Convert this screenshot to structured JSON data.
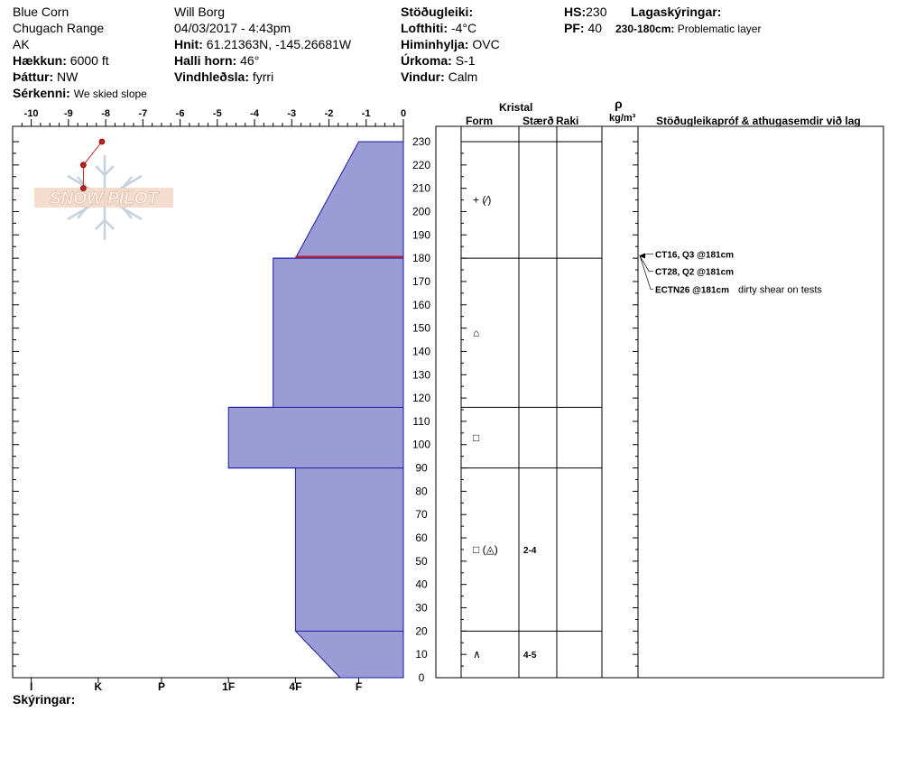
{
  "header": {
    "location": "Blue Corn",
    "range": "Chugach Range",
    "state": "AK",
    "elevation_label": "Hækkun:",
    "elevation_value": "6000 ft",
    "aspect_label": "Þáttur:",
    "aspect_value": "NW",
    "features_label": "Sérkenni:",
    "features_value": "We skied slope",
    "observer": "Will Borg",
    "datetime": "04/03/2017 - 4:43pm",
    "coords_label": "Hnit:",
    "coords_value": "61.21363N, -145.26681W",
    "slope_label": "Halli horn:",
    "slope_value": "46°",
    "wind_loading_label": "Vindhleðsla:",
    "wind_loading_value": "fyrri",
    "stability_label": "Stöðugleiki:",
    "air_temp_label": "Lofthiti:",
    "air_temp_value": "-4°C",
    "sky_label": "Himinhylja:",
    "sky_value": "OVC",
    "precip_label": "Úrkoma:",
    "precip_value": "S-1",
    "wind_label": "Vindur:",
    "wind_value": "Calm",
    "hs_label": "HS:",
    "hs_value": "230",
    "pf_label": "PF:",
    "pf_value": "40",
    "layer_notes_label": "Lagaskýringar:",
    "layer_note_range": "230-180cm:",
    "layer_note_text": "Problematic layer",
    "legend_label": "Skýringar:"
  },
  "columns": {
    "kristal": "Kristal",
    "form": "Form",
    "size": "Stærð",
    "moisture": "Raki",
    "rho": "ρ",
    "density_unit": "kg/m³",
    "tests": "Stöðugleikapróf & athugasemdir við lag"
  },
  "watermark": "SNOW PILOT",
  "colors": {
    "hardness_fill": "#9b9bd6",
    "hardness_stroke": "#1a1aa6",
    "temp_line": "#c0201f",
    "weak_layer": "#c0201f"
  },
  "chart_data": {
    "type": "snow-profile",
    "temp_axis": {
      "ticks": [
        -10,
        -9,
        -8,
        -7,
        -6,
        -5,
        -4,
        -3,
        -2,
        -1,
        0
      ],
      "tick_labels": [
        "-10",
        "-9",
        "-8",
        "-7",
        "-6",
        "-5",
        "-4",
        "-3",
        "-2",
        "-1",
        "0"
      ],
      "range": [
        -10.5,
        0
      ]
    },
    "height_axis": {
      "range": [
        0,
        230
      ],
      "ticks": [
        0,
        10,
        20,
        30,
        40,
        50,
        60,
        70,
        80,
        90,
        100,
        110,
        120,
        130,
        140,
        150,
        160,
        170,
        180,
        190,
        200,
        210,
        220,
        230
      ],
      "tick_labels": [
        "0",
        "10",
        "20",
        "30",
        "40",
        "50",
        "60",
        "70",
        "80",
        "90",
        "100",
        "110",
        "120",
        "130",
        "140",
        "150",
        "160",
        "170",
        "180",
        "190",
        "200",
        "210",
        "220",
        "230"
      ]
    },
    "hardness_axis": {
      "labels": [
        "I",
        "K",
        "P",
        "1F",
        "4F",
        "F"
      ],
      "temp_positions": [
        -10,
        -8.2,
        -6.5,
        -4.7,
        -2.9,
        -1.2
      ]
    },
    "temperature_profile": [
      {
        "height": 230,
        "temp": -8.1
      },
      {
        "height": 220,
        "temp": -8.6
      },
      {
        "height": 210,
        "temp": -8.6
      }
    ],
    "hardness_polygon": [
      [
        0,
        -1.7
      ],
      [
        20,
        -2.9
      ],
      [
        90,
        -2.9
      ],
      [
        90,
        -4.7
      ],
      [
        116,
        -4.7
      ],
      [
        116,
        -3.5
      ],
      [
        180,
        -3.5
      ],
      [
        180,
        -2.9
      ],
      [
        230,
        -1.2
      ],
      [
        230,
        0
      ],
      [
        0,
        0
      ]
    ],
    "hardness_interior_lines": [
      [
        20,
        -2.9,
        0
      ],
      [
        90,
        -4.7,
        0
      ],
      [
        116,
        -4.7,
        0
      ],
      [
        180,
        -3.5,
        0
      ]
    ],
    "weak_layer": {
      "height": 181,
      "from_temp": -2.9,
      "to_temp": 0
    },
    "layer_boundaries": [
      230,
      180,
      116,
      90,
      20
    ],
    "layers": [
      {
        "mid": 205,
        "form": "+ (⁄)",
        "size": ""
      },
      {
        "mid": 148,
        "form": "⌂",
        "size": ""
      },
      {
        "mid": 103,
        "form": "□",
        "size": ""
      },
      {
        "mid": 55,
        "form": "□ (◬)",
        "size": "2-4"
      },
      {
        "mid": 10,
        "form": "∧",
        "size": "4-5"
      }
    ],
    "tests": [
      {
        "height": 181,
        "label": "CT16, Q3 @181cm",
        "comment": ""
      },
      {
        "height": 181,
        "label": "CT28, Q2 @181cm",
        "comment": ""
      },
      {
        "height": 181,
        "label": "ECTN26 @181cm",
        "comment": "dirty shear on tests"
      }
    ]
  }
}
